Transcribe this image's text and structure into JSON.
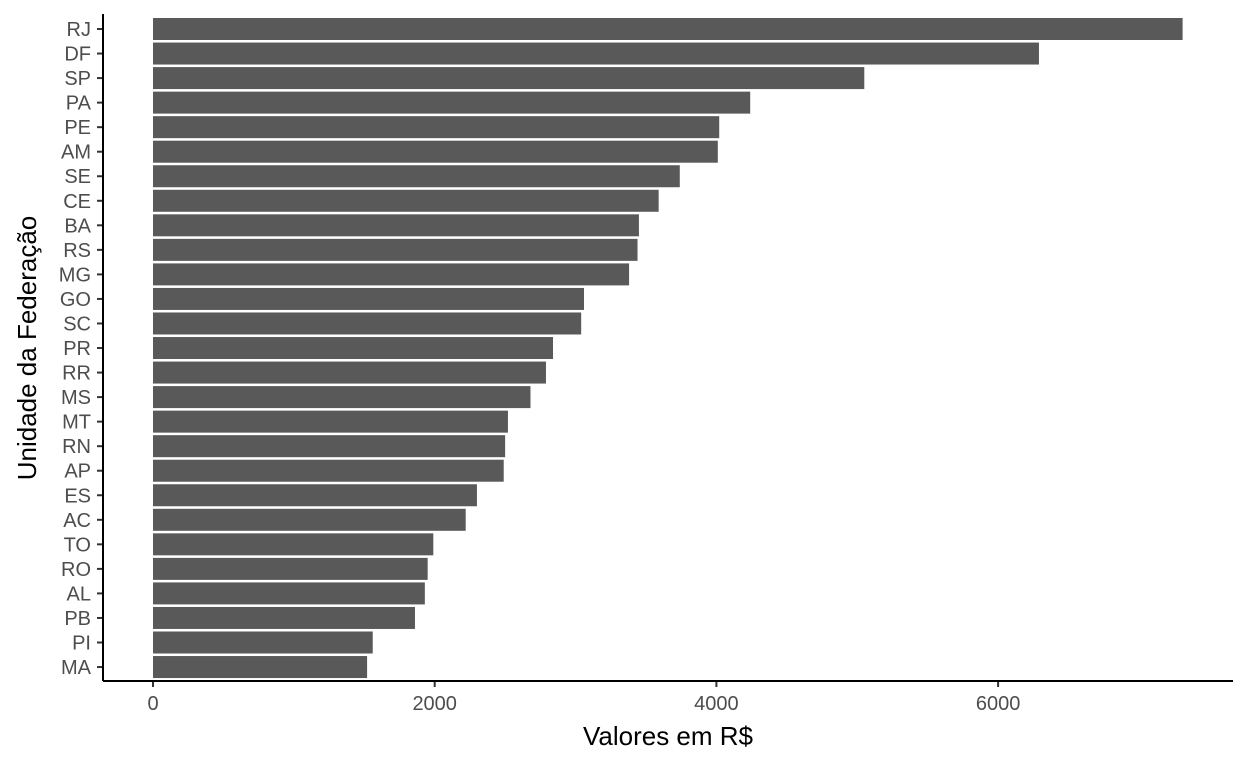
{
  "chart_data": {
    "type": "bar",
    "orientation": "horizontal",
    "title": "",
    "xlabel": "Valores em R$",
    "ylabel": "Unidade da Federação",
    "xlim": [
      0,
      7300
    ],
    "xticks": [
      0,
      2000,
      4000,
      6000
    ],
    "grid": false,
    "legend": "none",
    "bar_color": "#595959",
    "categories": [
      "RJ",
      "DF",
      "SP",
      "PA",
      "PE",
      "AM",
      "SE",
      "CE",
      "BA",
      "RS",
      "MG",
      "GO",
      "SC",
      "PR",
      "RR",
      "MS",
      "MT",
      "RN",
      "AP",
      "ES",
      "AC",
      "TO",
      "RO",
      "AL",
      "PB",
      "PI",
      "MA"
    ],
    "values": [
      7310,
      6290,
      5050,
      4240,
      4020,
      4010,
      3740,
      3590,
      3450,
      3440,
      3380,
      3060,
      3040,
      2840,
      2790,
      2680,
      2520,
      2500,
      2490,
      2300,
      2220,
      1990,
      1950,
      1930,
      1860,
      1560,
      1520
    ]
  }
}
